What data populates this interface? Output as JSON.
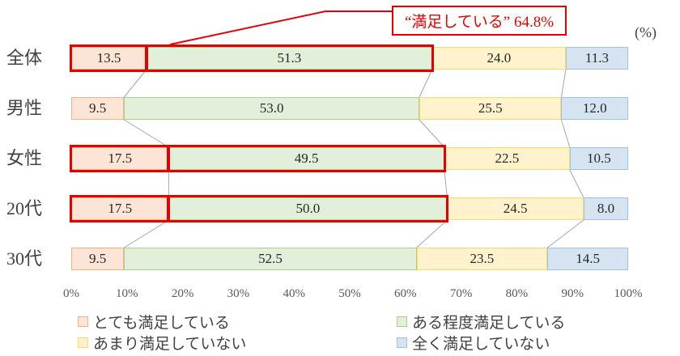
{
  "chart_data": {
    "type": "bar",
    "variant": "horizontal-100-stacked",
    "title": "",
    "unit_label": "(%)",
    "categories": [
      "全体",
      "男性",
      "女性",
      "20代",
      "30代"
    ],
    "series": [
      {
        "name": "とても満足している",
        "fill": "#fce4d6",
        "border": "#f4b183",
        "values": [
          13.5,
          9.5,
          17.5,
          17.5,
          9.5
        ]
      },
      {
        "name": "ある程度満足している",
        "fill": "#e2efda",
        "border": "#a9d18e",
        "values": [
          51.3,
          53.0,
          49.5,
          50.0,
          52.5
        ]
      },
      {
        "name": "あまり満足していない",
        "fill": "#fff2cc",
        "border": "#ffd966",
        "values": [
          24.0,
          25.5,
          22.5,
          24.5,
          23.5
        ]
      },
      {
        "name": "全く満足していない",
        "fill": "#d6e4f2",
        "border": "#9dc3e6",
        "values": [
          11.3,
          12.0,
          10.5,
          8.0,
          14.5
        ]
      }
    ],
    "x_ticks": [
      "0%",
      "10%",
      "20%",
      "30%",
      "40%",
      "50%",
      "60%",
      "70%",
      "80%",
      "90%",
      "100%"
    ],
    "xlim": [
      0,
      100
    ],
    "grid": false,
    "legend_position": "bottom",
    "connector_color": "#a6a6a6",
    "annotation": {
      "text": "“満足している” 64.8%",
      "color": "#e60000"
    },
    "highlight": {
      "rows": [
        0,
        2,
        3
      ],
      "segments": [
        0,
        1
      ],
      "color": "#e60000"
    }
  }
}
